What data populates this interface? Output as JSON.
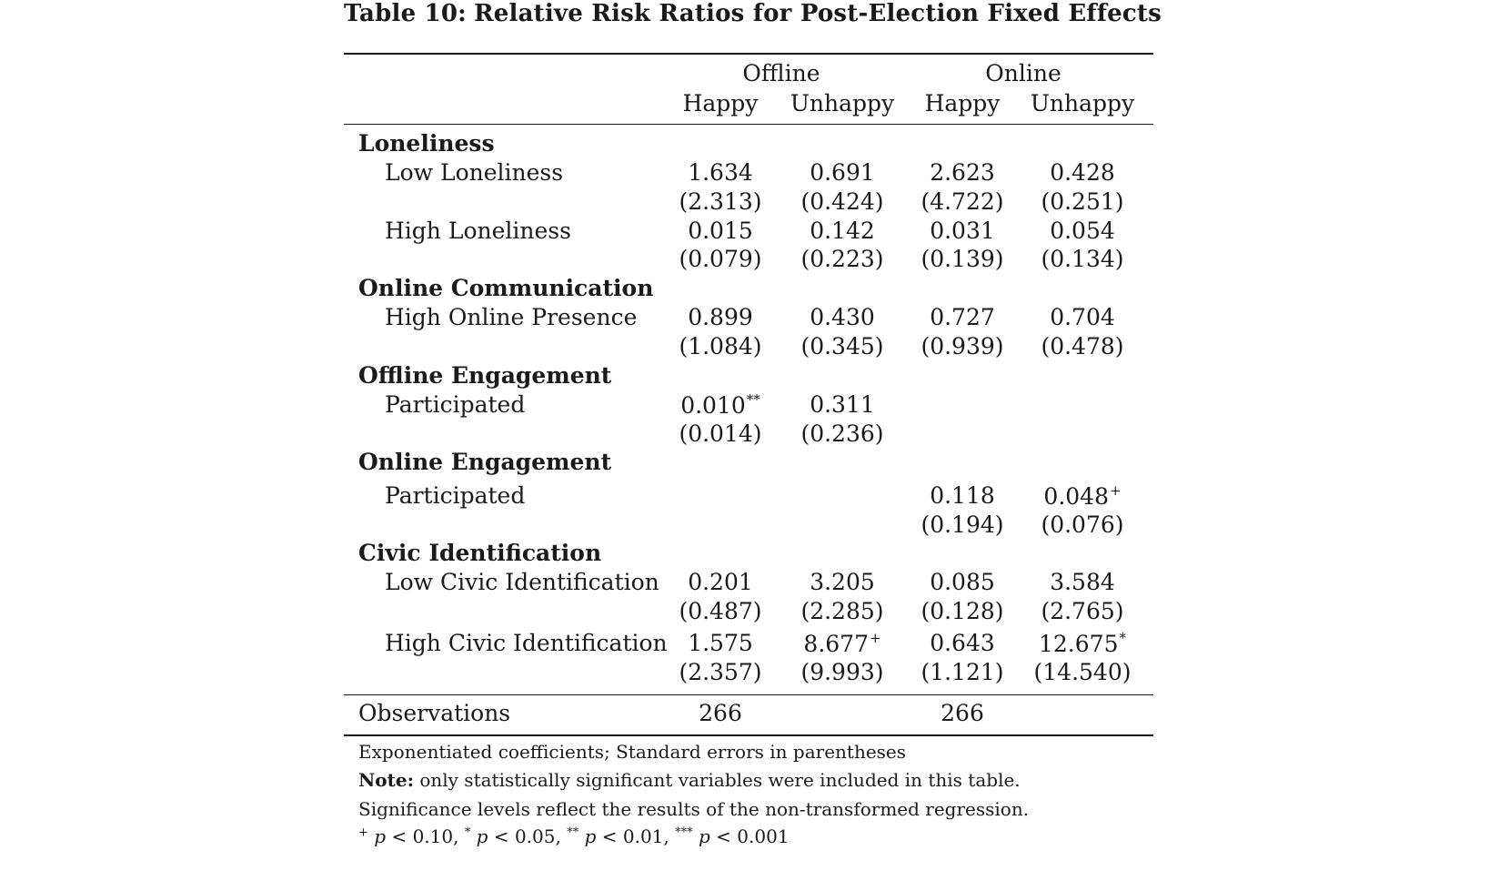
{
  "title": {
    "label": "Table 10:",
    "text": "Relative Risk Ratios for Post-Election Fixed Effects"
  },
  "header": {
    "groups": [
      "Offline",
      "Online"
    ],
    "columns": [
      "Happy",
      "Unhappy",
      "Happy",
      "Unhappy"
    ]
  },
  "sections": [
    {
      "name": "Loneliness",
      "rows": [
        {
          "label": "Low Loneliness",
          "coef": [
            "1.634",
            "0.691",
            "2.623",
            "0.428"
          ],
          "coef_stars": [
            "",
            "",
            "",
            ""
          ],
          "se": [
            "(2.313)",
            "(0.424)",
            "(4.722)",
            "(0.251)"
          ]
        },
        {
          "label": "High Loneliness",
          "coef": [
            "0.015",
            "0.142",
            "0.031",
            "0.054"
          ],
          "coef_stars": [
            "",
            "",
            "",
            ""
          ],
          "se": [
            "(0.079)",
            "(0.223)",
            "(0.139)",
            "(0.134)"
          ]
        }
      ]
    },
    {
      "name": "Online Communication",
      "rows": [
        {
          "label": "High Online Presence",
          "coef": [
            "0.899",
            "0.430",
            "0.727",
            "0.704"
          ],
          "coef_stars": [
            "",
            "",
            "",
            ""
          ],
          "se": [
            "(1.084)",
            "(0.345)",
            "(0.939)",
            "(0.478)"
          ]
        }
      ]
    },
    {
      "name": "Offline Engagement",
      "rows": [
        {
          "label": "Participated",
          "coef": [
            "0.010",
            "0.311",
            "",
            ""
          ],
          "coef_stars": [
            "**",
            "",
            "",
            ""
          ],
          "se": [
            "(0.014)",
            "(0.236)",
            "",
            ""
          ]
        }
      ]
    },
    {
      "name": "Online Engagement",
      "rows": [
        {
          "label": "Participated",
          "coef": [
            "",
            "",
            "0.118",
            "0.048"
          ],
          "coef_stars": [
            "",
            "",
            "",
            "+"
          ],
          "se": [
            "",
            "",
            "(0.194)",
            "(0.076)"
          ]
        }
      ]
    },
    {
      "name": "Civic Identification",
      "rows": [
        {
          "label": "Low Civic Identification",
          "coef": [
            "0.201",
            "3.205",
            "0.085",
            "3.584"
          ],
          "coef_stars": [
            "",
            "",
            "",
            ""
          ],
          "se": [
            "(0.487)",
            "(2.285)",
            "(0.128)",
            "(2.765)"
          ]
        },
        {
          "label": "High Civic Identification",
          "coef": [
            "1.575",
            "8.677",
            "0.643",
            "12.675"
          ],
          "coef_stars": [
            "",
            "+",
            "",
            "*"
          ],
          "se": [
            "(2.357)",
            "(9.993)",
            "(1.121)",
            "(14.540)"
          ]
        }
      ]
    }
  ],
  "observations": {
    "label": "Observations",
    "values": [
      "266",
      "",
      "266",
      ""
    ]
  },
  "notes": {
    "line1": "Exponentiated coefficients; Standard errors in parentheses",
    "note_label": "Note:",
    "line2": "only statistically significant variables were included in this table.",
    "line3": "Significance levels reflect the results of the non-transformed regression.",
    "sig": {
      "plus": "+",
      "p": "p",
      "lt": "<",
      "v1": "0.10,",
      "s1": "*",
      "v2": "0.05,",
      "s2": "**",
      "v3": "0.01,",
      "s3": "***",
      "v4": "0.001"
    }
  }
}
